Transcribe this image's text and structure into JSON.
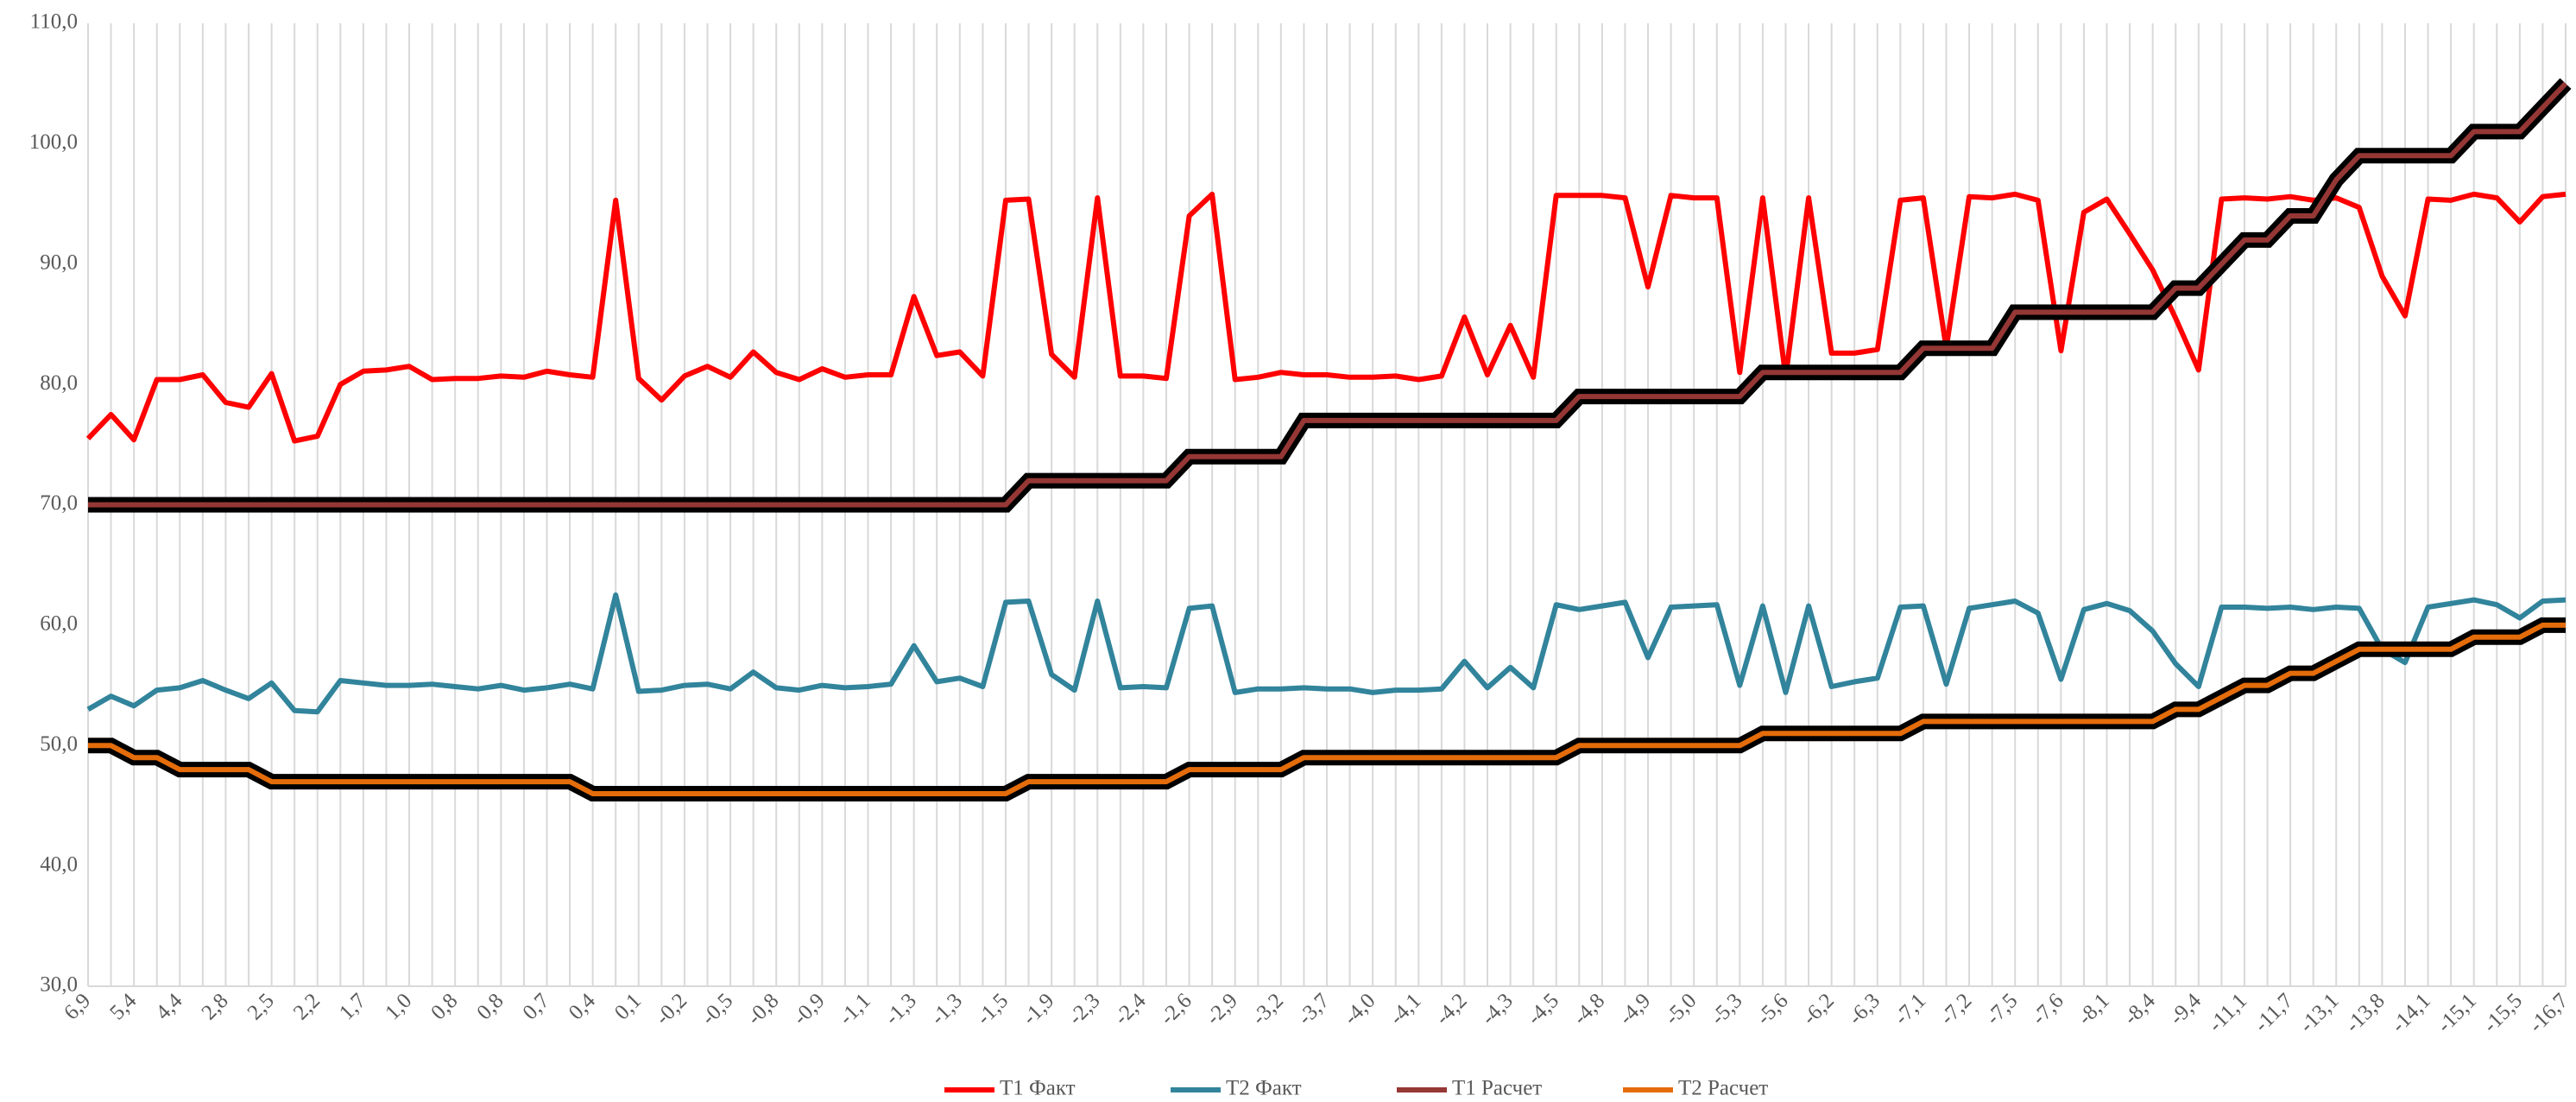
{
  "chart_data": {
    "type": "line",
    "categories": [
      "6,9",
      null,
      "5,4",
      null,
      "4,4",
      null,
      "2,8",
      null,
      "2,5",
      null,
      "2,2",
      null,
      "1,7",
      null,
      "1,0",
      null,
      "0,8",
      null,
      "0,8",
      null,
      "0,7",
      null,
      "0,4",
      null,
      "0,1",
      null,
      "-0,2",
      null,
      "-0,5",
      null,
      "-0,8",
      null,
      "-0,9",
      null,
      "-1,1",
      null,
      "-1,3",
      null,
      "-1,3",
      null,
      "-1,5",
      null,
      "-1,9",
      null,
      "-2,3",
      null,
      "-2,4",
      null,
      "-2,6",
      null,
      "-2,9",
      null,
      "-3,2",
      null,
      "-3,7",
      null,
      "-4,0",
      null,
      "-4,1",
      null,
      "-4,2",
      null,
      "-4,3",
      null,
      "-4,5",
      null,
      "-4,8",
      null,
      "-4,9",
      null,
      "-5,0",
      null,
      "-5,3",
      null,
      "-5,6",
      null,
      "-6,2",
      null,
      "-6,3",
      null,
      "-7,1",
      null,
      "-7,2",
      null,
      "-7,5",
      null,
      "-7,6",
      null,
      "-8,1",
      null,
      "-8,4",
      null,
      "-9,4",
      null,
      "-11,1",
      null,
      "-11,7",
      null,
      "-13,1",
      null,
      "-13,8",
      null,
      "-14,1",
      null,
      "-15,1",
      null,
      "-15,5",
      null,
      "-16,7"
    ],
    "series": [
      {
        "name": "Т1 Факт",
        "color": "#ff0000",
        "values": [
          75.5,
          77.5,
          75.4,
          80.4,
          80.4,
          80.8,
          78.5,
          78.1,
          80.9,
          75.3,
          75.7,
          80.0,
          81.1,
          81.2,
          81.5,
          80.4,
          80.5,
          80.5,
          80.7,
          80.6,
          81.1,
          80.8,
          80.6,
          95.3,
          80.5,
          78.7,
          80.7,
          81.5,
          80.6,
          82.7,
          81.0,
          80.4,
          81.3,
          80.6,
          80.8,
          80.8,
          87.3,
          82.4,
          82.7,
          80.7,
          95.3,
          95.4,
          82.5,
          80.6,
          95.5,
          80.7,
          80.7,
          80.5,
          94.0,
          95.8,
          80.4,
          80.6,
          81.0,
          80.8,
          80.8,
          80.6,
          80.6,
          80.7,
          80.4,
          80.7,
          85.6,
          80.8,
          84.9,
          80.6,
          95.7,
          95.7,
          95.7,
          95.5,
          88.1,
          95.7,
          95.5,
          95.5,
          81.0,
          95.5,
          80.6,
          95.5,
          82.6,
          82.6,
          82.9,
          95.3,
          95.5,
          83.0,
          95.6,
          95.5,
          95.8,
          95.3,
          82.8,
          94.3,
          95.4,
          92.5,
          89.5,
          85.5,
          81.2,
          95.4,
          95.5,
          95.4,
          95.6,
          95.3,
          95.5,
          94.7,
          89.0,
          85.7,
          95.4,
          95.3,
          95.8,
          95.5,
          93.5,
          95.6,
          95.8
        ]
      },
      {
        "name": "Т2 Факт",
        "color": "#31849b",
        "values": [
          53.0,
          54.1,
          53.3,
          54.6,
          54.8,
          55.4,
          54.6,
          53.9,
          55.2,
          52.9,
          52.8,
          55.4,
          55.2,
          55.0,
          55.0,
          55.1,
          54.9,
          54.7,
          55.0,
          54.6,
          54.8,
          55.1,
          54.7,
          62.5,
          54.5,
          54.6,
          55.0,
          55.1,
          54.7,
          56.1,
          54.8,
          54.6,
          55.0,
          54.8,
          54.9,
          55.1,
          58.3,
          55.3,
          55.6,
          54.9,
          61.9,
          62.0,
          55.9,
          54.6,
          62.0,
          54.8,
          54.9,
          54.8,
          61.4,
          61.6,
          54.4,
          54.7,
          54.7,
          54.8,
          54.7,
          54.7,
          54.4,
          54.6,
          54.6,
          54.7,
          57.0,
          54.8,
          56.5,
          54.8,
          61.7,
          61.3,
          61.6,
          61.9,
          57.3,
          61.5,
          61.6,
          61.7,
          55.0,
          61.6,
          54.4,
          61.6,
          54.9,
          55.3,
          55.6,
          61.5,
          61.6,
          55.1,
          61.4,
          61.7,
          62.0,
          61.0,
          55.5,
          61.3,
          61.8,
          61.2,
          59.5,
          56.8,
          54.9,
          61.5,
          61.5,
          61.4,
          61.5,
          61.3,
          61.5,
          61.4,
          58.0,
          56.9,
          61.5,
          61.8,
          62.1,
          61.7,
          60.6,
          62.0,
          62.1
        ]
      },
      {
        "name": "Т1 Расчет",
        "color": "#953735",
        "outline": "#000000",
        "values": [
          70,
          70,
          70,
          70,
          70,
          70,
          70,
          70,
          70,
          70,
          70,
          70,
          70,
          70,
          70,
          70,
          70,
          70,
          70,
          70,
          70,
          70,
          70,
          70,
          70,
          70,
          70,
          70,
          70,
          70,
          70,
          70,
          70,
          70,
          70,
          70,
          70,
          70,
          70,
          70,
          70,
          72,
          72,
          72,
          72,
          72,
          72,
          72,
          74,
          74,
          74,
          74,
          74,
          77,
          77,
          77,
          77,
          77,
          77,
          77,
          77,
          77,
          77,
          77,
          77,
          79,
          79,
          79,
          79,
          79,
          79,
          79,
          79,
          81,
          81,
          81,
          81,
          81,
          81,
          81,
          83,
          83,
          83,
          83,
          86,
          86,
          86,
          86,
          86,
          86,
          86,
          88,
          88,
          90,
          92,
          92,
          94,
          94,
          97,
          99,
          99,
          99,
          99,
          99,
          101,
          101,
          101,
          103,
          105
        ]
      },
      {
        "name": "Т2 Расчет",
        "color": "#e46c0a",
        "outline": "#000000",
        "values": [
          50,
          50,
          49,
          49,
          48,
          48,
          48,
          48,
          47,
          47,
          47,
          47,
          47,
          47,
          47,
          47,
          47,
          47,
          47,
          47,
          47,
          47,
          46,
          46,
          46,
          46,
          46,
          46,
          46,
          46,
          46,
          46,
          46,
          46,
          46,
          46,
          46,
          46,
          46,
          46,
          46,
          47,
          47,
          47,
          47,
          47,
          47,
          47,
          48,
          48,
          48,
          48,
          48,
          49,
          49,
          49,
          49,
          49,
          49,
          49,
          49,
          49,
          49,
          49,
          49,
          50,
          50,
          50,
          50,
          50,
          50,
          50,
          50,
          51,
          51,
          51,
          51,
          51,
          51,
          51,
          52,
          52,
          52,
          52,
          52,
          52,
          52,
          52,
          52,
          52,
          52,
          53,
          53,
          54,
          55,
          55,
          56,
          56,
          57,
          58,
          58,
          58,
          58,
          58,
          59,
          59,
          59,
          60,
          60
        ]
      }
    ],
    "ylim": [
      30,
      110
    ],
    "yticks": [
      {
        "value": 30,
        "label": "30,0"
      },
      {
        "value": 40,
        "label": "40,0"
      },
      {
        "value": 50,
        "label": "50,0"
      },
      {
        "value": 60,
        "label": "60,0"
      },
      {
        "value": 70,
        "label": "70,0"
      },
      {
        "value": 80,
        "label": "80,0"
      },
      {
        "value": 90,
        "label": "90,0"
      },
      {
        "value": 100,
        "label": "100,0"
      },
      {
        "value": 110,
        "label": "110,0"
      }
    ],
    "grid": true,
    "legend": "bottom"
  }
}
